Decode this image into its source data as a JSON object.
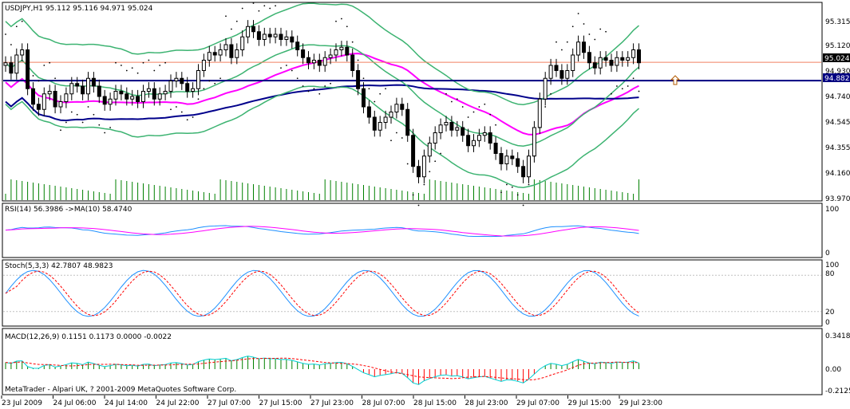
{
  "chart_data": {
    "type": "candlestick",
    "symbol_header": "USDJPY,H1  95.112 95.116 94.971 95.024",
    "price_axis": {
      "ticks": [
        "95.315",
        "95.120",
        "94.930",
        "94.740",
        "94.545",
        "94.355",
        "94.160",
        "93.970"
      ],
      "range": [
        93.96,
        95.48
      ]
    },
    "price_levels": {
      "current": "95.024",
      "horizontal_line": "94.882"
    },
    "time_labels": [
      "23 Jul 2009",
      "24 Jul 06:00",
      "24 Jul 14:00",
      "24 Jul 22:00",
      "27 Jul 07:00",
      "27 Jul 15:00",
      "27 Jul 23:00",
      "28 Jul 07:00",
      "28 Jul 15:00",
      "28 Jul 23:00",
      "29 Jul 07:00",
      "29 Jul 15:00",
      "29 Jul 23:00"
    ],
    "candles_close": [
      95.02,
      94.94,
      95.08,
      95.12,
      94.82,
      94.7,
      94.66,
      94.78,
      94.8,
      94.68,
      94.72,
      94.78,
      94.86,
      94.84,
      94.78,
      94.9,
      94.84,
      94.76,
      94.7,
      94.74,
      94.8,
      94.78,
      94.74,
      94.76,
      94.72,
      94.8,
      94.82,
      94.74,
      94.78,
      94.8,
      94.88,
      94.9,
      94.86,
      94.8,
      94.82,
      94.96,
      95.04,
      95.1,
      95.08,
      95.12,
      95.16,
      95.06,
      95.12,
      95.22,
      95.3,
      95.26,
      95.2,
      95.24,
      95.22,
      95.24,
      95.2,
      95.22,
      95.18,
      95.12,
      95.06,
      95.02,
      95.04,
      95.0,
      95.06,
      95.08,
      95.12,
      95.14,
      95.08,
      94.96,
      94.82,
      94.68,
      94.6,
      94.5,
      94.56,
      94.6,
      94.64,
      94.7,
      94.66,
      94.46,
      94.22,
      94.14,
      94.3,
      94.4,
      94.48,
      94.54,
      94.56,
      94.5,
      94.52,
      94.46,
      94.38,
      94.42,
      94.46,
      94.48,
      94.4,
      94.32,
      94.24,
      94.3,
      94.28,
      94.22,
      94.14,
      94.3,
      94.52,
      94.74,
      94.9,
      95.0,
      94.96,
      94.9,
      94.96,
      95.08,
      95.18,
      95.1,
      95.02,
      94.98,
      95.06,
      95.04,
      95.0,
      95.06,
      95.04,
      95.06,
      95.12,
      95.02
    ],
    "volume_note": "",
    "indicators": {
      "rsi": {
        "label": "RSI(14) 56.3986  ->MA(10) 58.4740",
        "ticks": [
          "100",
          "0"
        ]
      },
      "stoch": {
        "label": "Stoch(5,3,3) 42.7807 48.9823",
        "ticks": [
          "100",
          "80",
          "20",
          "0"
        ]
      },
      "macd": {
        "label": "MACD(12,26,9) 0.1151 0.1173 0.0000 -0.0022",
        "ticks": [
          "0.3418",
          "0.00",
          "-0.2125"
        ]
      }
    },
    "copyright": "MetaTrader - Alpari UK, ? 2001-2009 MetaQuotes Software Corp.",
    "colors": {
      "bollinger": "#3cb371",
      "ma_pink": "#ff00ff",
      "ma_blue": "#00008b",
      "hline": "#000080",
      "price_line": "#f08060",
      "volume": "#008000",
      "rsi_line": "#1e90ff",
      "stoch_main": "#1e90ff",
      "stoch_signal": "#ff0000",
      "macd_main": "#00ced1",
      "macd_signal": "#ff0000",
      "macd_hist_pos": "#008000",
      "macd_hist_neg": "#ff0000"
    }
  }
}
